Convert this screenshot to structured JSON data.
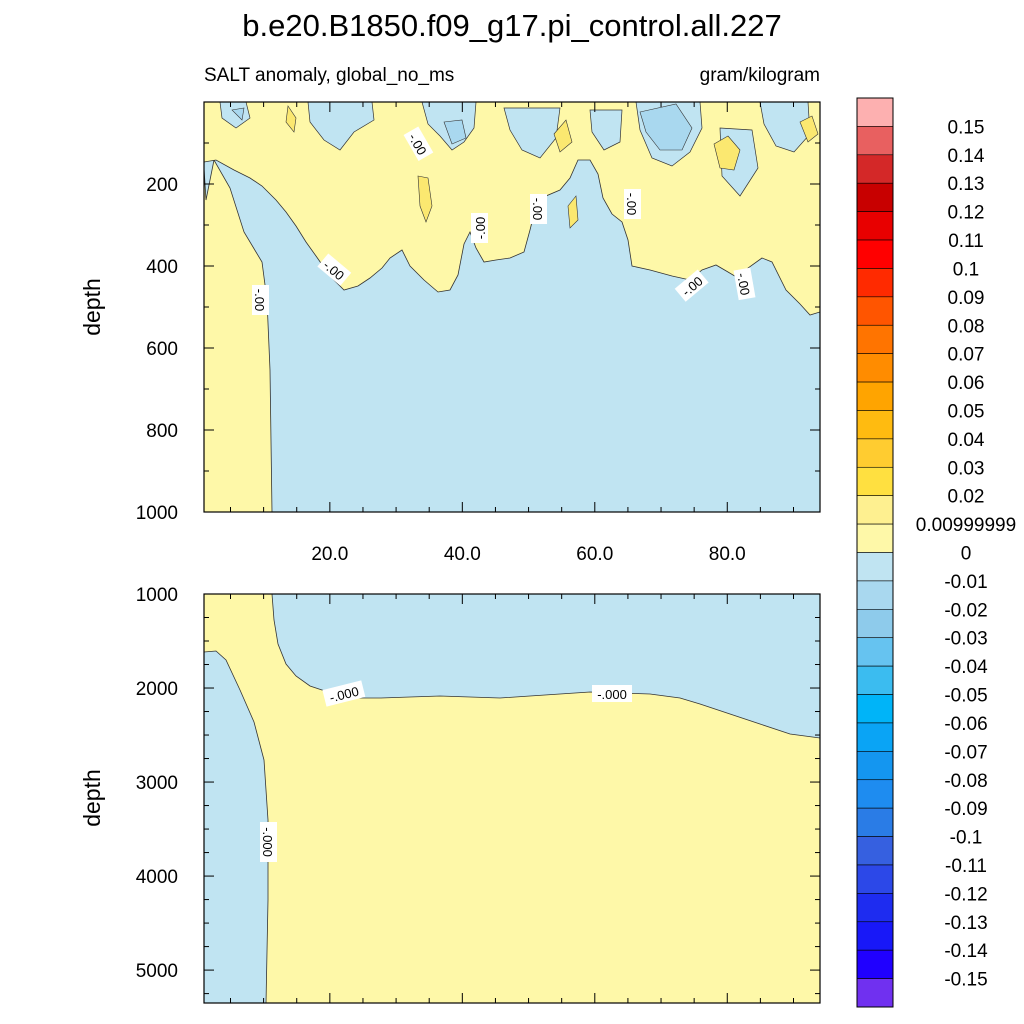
{
  "figure": {
    "title": "b.e20.B1850.f09_g17.pi_control.all.227",
    "subtitle_left": "SALT anomaly, global_no_ms",
    "subtitle_right": "gram/kilogram"
  },
  "chart_data": [
    {
      "type": "heatmap",
      "panel": "upper",
      "variable": "SALT anomaly",
      "units": "gram/kilogram",
      "ylabel": "depth",
      "xlabel": "",
      "xlim": [
        1,
        94
      ],
      "ylim": [
        0,
        1000
      ],
      "y_reversed": true,
      "xticks": [
        "20.0",
        "40.0",
        "60.0",
        "80.0"
      ],
      "xtick_values": [
        20,
        40,
        60,
        80
      ],
      "yticks": [
        "200",
        "400",
        "600",
        "800",
        "1000"
      ],
      "ytick_values": [
        200,
        400,
        600,
        800,
        1000
      ],
      "contour_labels": [
        "-.00",
        "-.00",
        "-.00",
        "-.00",
        "-.00",
        "-.00",
        "-.00",
        "-.00"
      ],
      "regions": [
        {
          "level": "0 to 0.01",
          "color": "#fef8a8",
          "description": "western column x<11 full depth"
        },
        {
          "level": "0 to 0.01",
          "color": "#fef8a8",
          "description": "surface layer 0-500 m, x 25-94"
        },
        {
          "level": "-0.01 to 0",
          "color": "#c0e4f2",
          "description": "interior below ~450 m"
        }
      ]
    },
    {
      "type": "heatmap",
      "panel": "lower",
      "variable": "SALT anomaly",
      "units": "gram/kilogram",
      "ylabel": "depth",
      "xlabel": "",
      "xlim": [
        1,
        94
      ],
      "ylim": [
        1000,
        5350
      ],
      "y_reversed": true,
      "xticks": [],
      "yticks": [
        "1000",
        "2000",
        "3000",
        "4000",
        "5000"
      ],
      "ytick_values": [
        1000,
        2000,
        3000,
        4000,
        5000
      ],
      "contour_labels": [
        "-.000",
        "-.000",
        "-.000"
      ],
      "regions": [
        {
          "level": "-0.01 to 0",
          "color": "#c0e4f2",
          "description": "western boundary x<10 below 1600 m"
        },
        {
          "level": "-0.01 to 0",
          "color": "#c0e4f2",
          "description": "upper layer 1000-2100 m east of x=11"
        },
        {
          "level": "0 to 0.01",
          "color": "#fef8a8",
          "description": "deep ocean below ~2100 m"
        }
      ]
    },
    {
      "type": "colorbar",
      "labels": [
        "0.15",
        "0.14",
        "0.13",
        "0.12",
        "0.11",
        "0.1",
        "0.09",
        "0.08",
        "0.07",
        "0.06",
        "0.05",
        "0.04",
        "0.03",
        "0.02",
        "0.00999999",
        "0",
        "-0.01",
        "-0.02",
        "-0.03",
        "-0.04",
        "-0.05",
        "-0.06",
        "-0.07",
        "-0.08",
        "-0.09",
        "-0.1",
        "-0.11",
        "-0.12",
        "-0.13",
        "-0.14",
        "-0.15"
      ],
      "colors": [
        "#fdb0b0",
        "#e86060",
        "#d42828",
        "#c80000",
        "#e80000",
        "#ff0000",
        "#ff2a00",
        "#ff5500",
        "#ff7400",
        "#ff8c00",
        "#ffa400",
        "#ffbb10",
        "#ffcc30",
        "#ffe040",
        "#fef090",
        "#fef8a8",
        "#c0e4f2",
        "#a9d8ef",
        "#8ecbeb",
        "#66c3f0",
        "#3bbcf0",
        "#00b4f8",
        "#0aa4f5",
        "#1496f0",
        "#1e8cf0",
        "#2a7ce6",
        "#3660e0",
        "#2c48e8",
        "#1e2cf0",
        "#1818f8",
        "#2000ff",
        "#7030f0"
      ]
    }
  ]
}
